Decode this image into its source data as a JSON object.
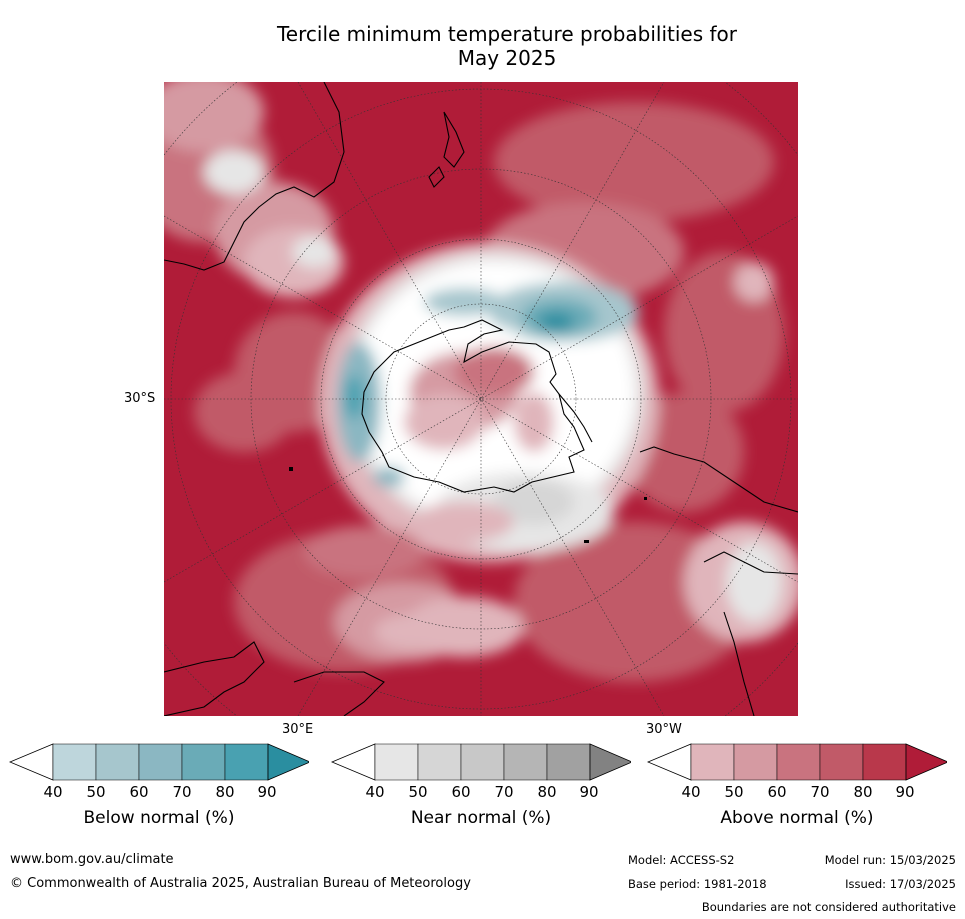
{
  "title_line1": "Tercile minimum temperature probabilities for",
  "title_line2": "May 2025",
  "map": {
    "lat_label": "30°S",
    "lon_label_east": "30°E",
    "lon_label_west": "30°W"
  },
  "colorbars": [
    {
      "label": "Below normal (%)",
      "ticks": [
        "40",
        "50",
        "60",
        "70",
        "80",
        "90"
      ],
      "colors": [
        "#bed6dc",
        "#a6c6cd",
        "#8bb7c2",
        "#6aabb7",
        "#49a1b1",
        "#2a8ea0"
      ]
    },
    {
      "label": "Near normal (%)",
      "ticks": [
        "40",
        "50",
        "60",
        "70",
        "80",
        "90"
      ],
      "colors": [
        "#e6e6e6",
        "#d6d6d6",
        "#c8c8c8",
        "#b5b5b5",
        "#a1a1a1",
        "#828282"
      ]
    },
    {
      "label": "Above normal (%)",
      "ticks": [
        "40",
        "50",
        "60",
        "70",
        "80",
        "90"
      ],
      "colors": [
        "#e0b5bb",
        "#d59aa2",
        "#c9737f",
        "#c15a68",
        "#b9384b",
        "#b01c38"
      ]
    }
  ],
  "footer": {
    "url": "www.bom.gov.au/climate",
    "copyright": "© Commonwealth of Australia 2025, Australian Bureau of Meteorology",
    "model": "Model: ACCESS-S2",
    "model_run": "Model run: 15/03/2025",
    "base_period": "Base period: 1981-2018",
    "issued": "Issued: 17/03/2025",
    "disclaimer": "Boundaries are not considered authoritative"
  }
}
